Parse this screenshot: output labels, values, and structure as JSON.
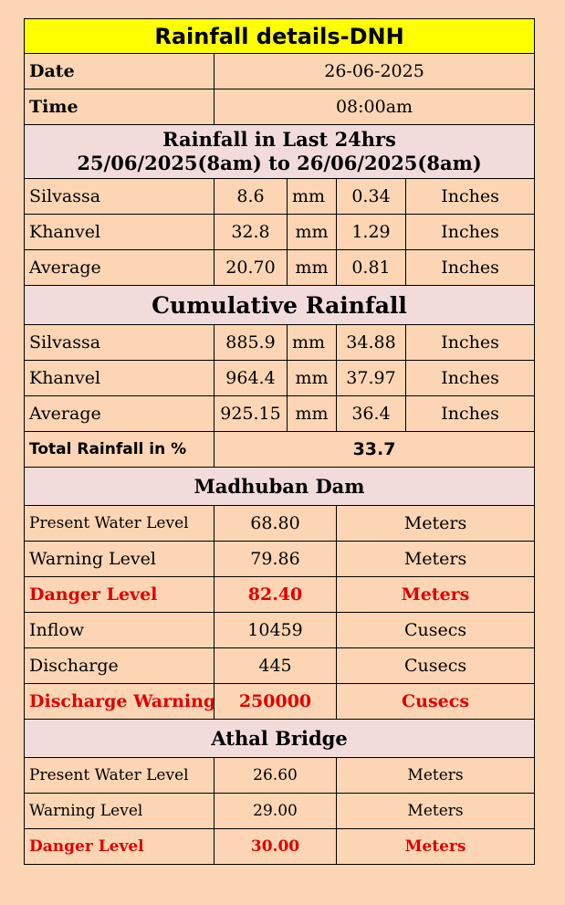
{
  "title": "Rainfall  details-DNH",
  "date": {
    "label": "Date",
    "value": "26-06-2025"
  },
  "time": {
    "label": "Time",
    "value": "08:00am"
  },
  "last24": {
    "heading_line1": "Rainfall in Last 24hrs",
    "heading_line2": "25/06/2025(8am) to 26/06/2025(8am)",
    "rows": [
      {
        "name": "Silvassa",
        "mm": "8.6",
        "mm_unit": "mm",
        "inches": "0.34",
        "in_unit": "Inches"
      },
      {
        "name": "Khanvel",
        "mm": "32.8",
        "mm_unit": "mm",
        "inches": "1.29",
        "in_unit": "Inches"
      },
      {
        "name": "Average",
        "mm": "20.70",
        "mm_unit": "mm",
        "inches": "0.81",
        "in_unit": "Inches"
      }
    ]
  },
  "cumulative": {
    "heading": "Cumulative Rainfall",
    "rows": [
      {
        "name": "Silvassa",
        "mm": "885.9",
        "mm_unit": "mm",
        "inches": "34.88",
        "in_unit": "Inches"
      },
      {
        "name": "Khanvel",
        "mm": "964.4",
        "mm_unit": "mm",
        "inches": "37.97",
        "in_unit": "Inches"
      },
      {
        "name": "Average",
        "mm": "925.15",
        "mm_unit": "mm",
        "inches": "36.4",
        "in_unit": "Inches"
      }
    ],
    "total_label": "Total Rainfall  in %",
    "total_value": "33.7"
  },
  "madhuban": {
    "heading": "Madhuban Dam",
    "rows": [
      {
        "label": "Present Water Level",
        "value": "68.80",
        "unit": "Meters"
      },
      {
        "label": "Warning Level",
        "value": "79.86",
        "unit": "Meters"
      },
      {
        "label": "Danger Level",
        "value": "82.40",
        "unit": "Meters"
      },
      {
        "label": "Inflow",
        "value": "10459",
        "unit": "Cusecs"
      },
      {
        "label": "Discharge",
        "value": "445",
        "unit": "Cusecs"
      },
      {
        "label": "Discharge Warning",
        "value": "250000",
        "unit": "Cusecs"
      }
    ]
  },
  "athal": {
    "heading": "Athal Bridge",
    "rows": [
      {
        "label": "Present Water Level",
        "value": "26.60",
        "unit": "Meters"
      },
      {
        "label": "Warning Level",
        "value": "29.00",
        "unit": "Meters"
      },
      {
        "label": "Danger Level",
        "value": "30.00",
        "unit": "Meters"
      }
    ]
  },
  "colors": {
    "title_bg": "#ffff00",
    "header_bg": "#f2dcdb",
    "border_bg": "#fcd5b4",
    "danger": "#e00000"
  }
}
